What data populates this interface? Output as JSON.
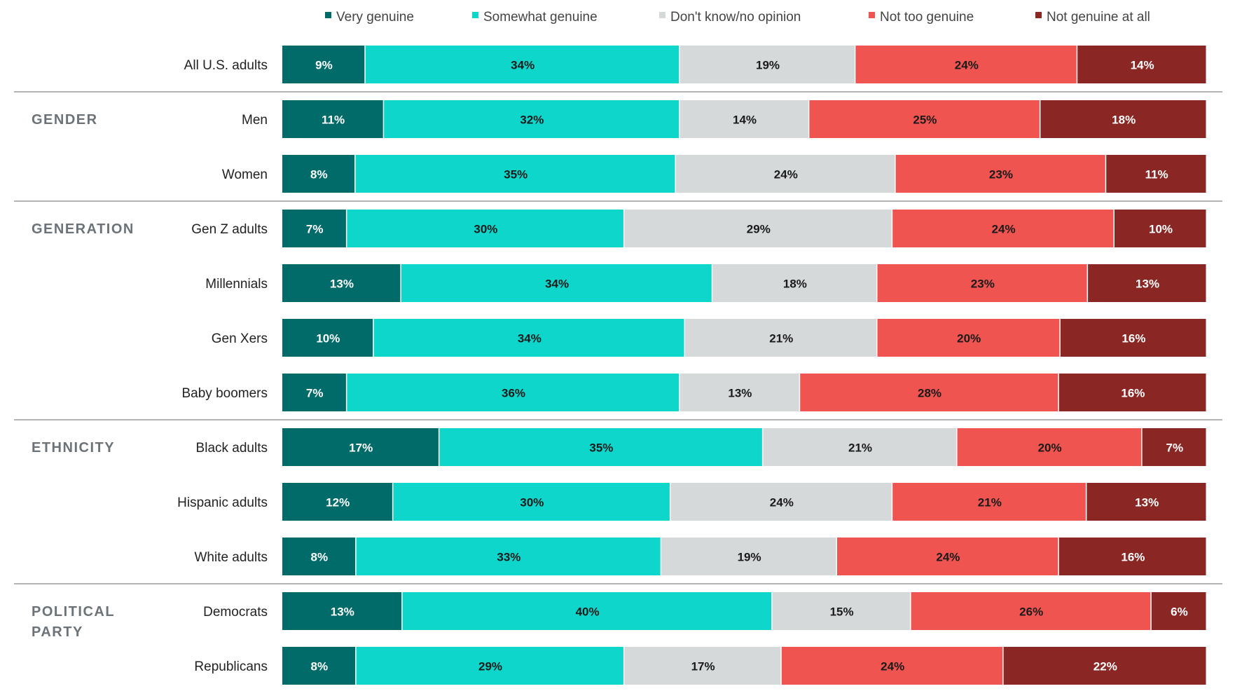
{
  "chart_data": {
    "type": "bar",
    "orientation": "horizontal",
    "stacked": true,
    "legend_position": "top",
    "series": [
      {
        "name": "Very genuine",
        "color": "#006b68",
        "label_color": "#ffffff"
      },
      {
        "name": "Somewhat genuine",
        "color": "#0fd6cb",
        "label_color": "#1a1a1a"
      },
      {
        "name": "Don't know/no opinion",
        "color": "#d5d9da",
        "label_color": "#1a1a1a"
      },
      {
        "name": "Not too genuine",
        "color": "#ef5450",
        "label_color": "#1a1a1a"
      },
      {
        "name": "Not genuine at all",
        "color": "#8a2624",
        "label_color": "#ffffff"
      }
    ],
    "groups": [
      {
        "label": "",
        "rows": [
          {
            "label": "All U.S. adults",
            "values": [
              9,
              34,
              19,
              24,
              14
            ]
          }
        ]
      },
      {
        "label": "GENDER",
        "rows": [
          {
            "label": "Men",
            "values": [
              11,
              32,
              14,
              25,
              18
            ]
          },
          {
            "label": "Women",
            "values": [
              8,
              35,
              24,
              23,
              11
            ]
          }
        ]
      },
      {
        "label": "GENERATION",
        "rows": [
          {
            "label": "Gen Z adults",
            "values": [
              7,
              30,
              29,
              24,
              10
            ]
          },
          {
            "label": "Millennials",
            "values": [
              13,
              34,
              18,
              23,
              13
            ]
          },
          {
            "label": "Gen Xers",
            "values": [
              10,
              34,
              21,
              20,
              16
            ]
          },
          {
            "label": "Baby boomers",
            "values": [
              7,
              36,
              13,
              28,
              16
            ]
          }
        ]
      },
      {
        "label": "ETHNICITY",
        "rows": [
          {
            "label": "Black adults",
            "values": [
              17,
              35,
              21,
              20,
              7
            ]
          },
          {
            "label": "Hispanic adults",
            "values": [
              12,
              30,
              24,
              21,
              13
            ]
          },
          {
            "label": "White adults",
            "values": [
              8,
              33,
              19,
              24,
              16
            ]
          }
        ]
      },
      {
        "label": "POLITICAL PARTY",
        "label_lines": [
          "POLITICAL",
          "PARTY"
        ],
        "rows": [
          {
            "label": "Democrats",
            "values": [
              13,
              40,
              15,
              26,
              6
            ]
          },
          {
            "label": "Republicans",
            "values": [
              8,
              29,
              17,
              24,
              22
            ]
          }
        ]
      }
    ],
    "value_suffix": "%",
    "title": "",
    "xlabel": "",
    "ylabel": ""
  }
}
